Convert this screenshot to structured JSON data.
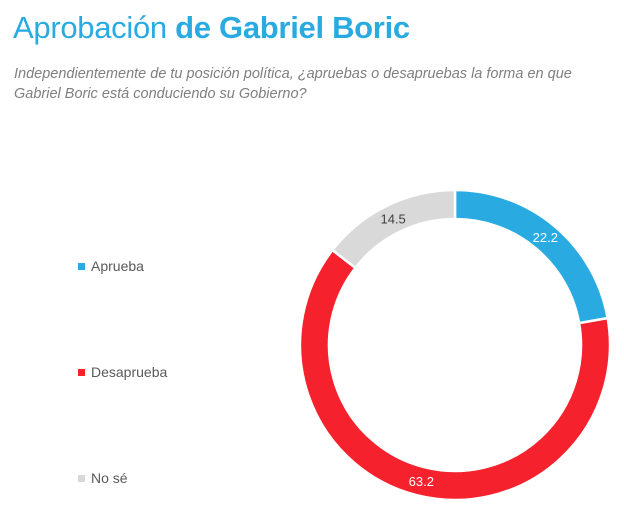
{
  "title": {
    "regular": "Aprobación ",
    "bold": "de Gabriel Boric"
  },
  "subtitle": "Independientemente de tu posición política, ¿apruebas o desapruebas la forma en que Gabriel Boric está conduciendo su Gobierno?",
  "chart_data": {
    "type": "pie",
    "style": "donut",
    "legend_position": "left",
    "series": [
      {
        "name": "Aprueba",
        "value": 22.2,
        "label": "22.2",
        "color": "#29abe2",
        "label_color": "#ffffff"
      },
      {
        "name": "Desaprueba",
        "value": 63.2,
        "label": "63.2",
        "color": "#f5222d",
        "label_color": "#ffffff"
      },
      {
        "name": "No sé",
        "value": 14.5,
        "label": "14.5",
        "color": "#d9d9d9",
        "label_color": "#404040"
      }
    ]
  }
}
